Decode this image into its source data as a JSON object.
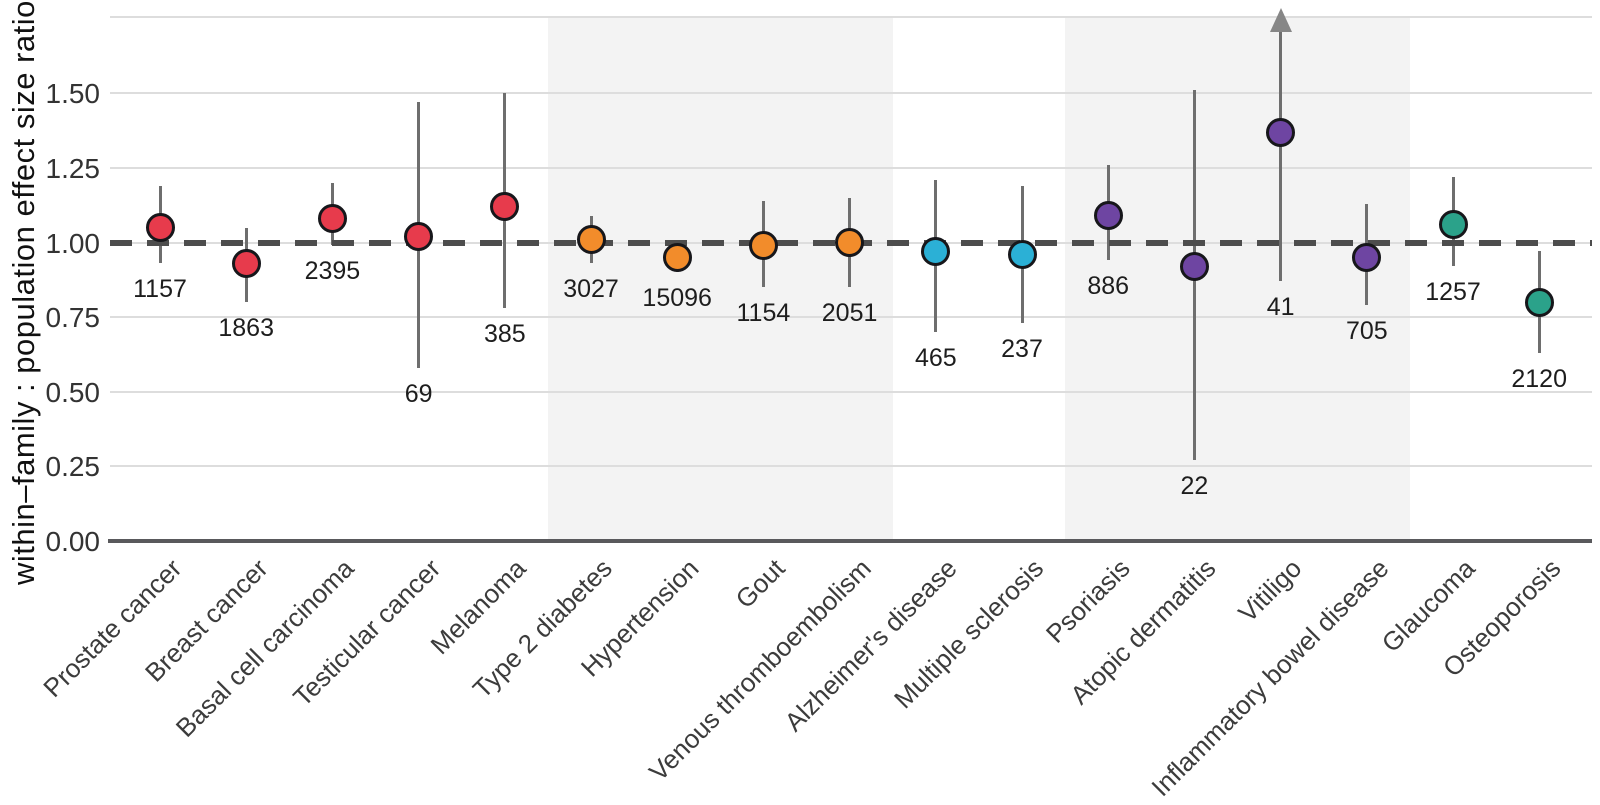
{
  "chart_data": {
    "type": "scatter",
    "title": "",
    "xlabel": "",
    "ylabel": "within–family : population effect size ratio",
    "ylim": [
      0,
      1.76
    ],
    "yticks": [
      0.0,
      0.25,
      0.5,
      0.75,
      1.0,
      1.25,
      1.5
    ],
    "grid": true,
    "legend": "none",
    "reference_line_y": 1.0,
    "reference_line_style": "dashed",
    "shaded_bands_categories": [
      {
        "start": "Type 2 diabetes",
        "end": "Venous thromboembolism"
      },
      {
        "start": "Psoriasis",
        "end": "Inflammatory bowel disease"
      }
    ],
    "point_colors_hex": {
      "red": "#e73b4c",
      "orange": "#f28c2b",
      "cyan": "#2bb0d6",
      "purple": "#6e45a2",
      "teal": "#2ba28a"
    },
    "points": [
      {
        "category": "Prostate cancer",
        "value": 1.05,
        "ci_low": 0.93,
        "ci_high": 1.19,
        "n_label": "1157",
        "color": "#e73b4c",
        "ci_high_truncated": false
      },
      {
        "category": "Breast cancer",
        "value": 0.93,
        "ci_low": 0.8,
        "ci_high": 1.05,
        "n_label": "1863",
        "color": "#e73b4c",
        "ci_high_truncated": false
      },
      {
        "category": "Basal cell carcinoma",
        "value": 1.08,
        "ci_low": 0.99,
        "ci_high": 1.2,
        "n_label": "2395",
        "color": "#e73b4c",
        "ci_high_truncated": false
      },
      {
        "category": "Testicular cancer",
        "value": 1.02,
        "ci_low": 0.58,
        "ci_high": 1.47,
        "n_label": "69",
        "color": "#e73b4c",
        "ci_high_truncated": false
      },
      {
        "category": "Melanoma",
        "value": 1.12,
        "ci_low": 0.78,
        "ci_high": 1.5,
        "n_label": "385",
        "color": "#e73b4c",
        "ci_high_truncated": false
      },
      {
        "category": "Type 2 diabetes",
        "value": 1.01,
        "ci_low": 0.93,
        "ci_high": 1.09,
        "n_label": "3027",
        "color": "#f28c2b",
        "ci_high_truncated": false
      },
      {
        "category": "Hypertension",
        "value": 0.95,
        "ci_low": 0.9,
        "ci_high": 1.01,
        "n_label": "15096",
        "color": "#f28c2b",
        "ci_high_truncated": false
      },
      {
        "category": "Gout",
        "value": 0.99,
        "ci_low": 0.85,
        "ci_high": 1.14,
        "n_label": "1154",
        "color": "#f28c2b",
        "ci_high_truncated": false
      },
      {
        "category": "Venous thromboembolism",
        "value": 1.0,
        "ci_low": 0.85,
        "ci_high": 1.15,
        "n_label": "2051",
        "color": "#f28c2b",
        "ci_high_truncated": false
      },
      {
        "category": "Alzheimer's disease",
        "value": 0.97,
        "ci_low": 0.7,
        "ci_high": 1.21,
        "n_label": "465",
        "color": "#2bb0d6",
        "ci_high_truncated": false
      },
      {
        "category": "Multiple sclerosis",
        "value": 0.96,
        "ci_low": 0.73,
        "ci_high": 1.19,
        "n_label": "237",
        "color": "#2bb0d6",
        "ci_high_truncated": false
      },
      {
        "category": "Psoriasis",
        "value": 1.09,
        "ci_low": 0.94,
        "ci_high": 1.26,
        "n_label": "886",
        "color": "#6e45a2",
        "ci_high_truncated": false
      },
      {
        "category": "Atopic dermatitis",
        "value": 0.92,
        "ci_low": 0.27,
        "ci_high": 1.51,
        "n_label": "22",
        "color": "#6e45a2",
        "ci_high_truncated": false
      },
      {
        "category": "Vitiligo",
        "value": 1.37,
        "ci_low": 0.87,
        "ci_high": null,
        "n_label": "41",
        "color": "#6e45a2",
        "ci_high_truncated": true
      },
      {
        "category": "Inflammatory bowel disease",
        "value": 0.95,
        "ci_low": 0.79,
        "ci_high": 1.13,
        "n_label": "705",
        "color": "#6e45a2",
        "ci_high_truncated": false
      },
      {
        "category": "Glaucoma",
        "value": 1.06,
        "ci_low": 0.92,
        "ci_high": 1.22,
        "n_label": "1257",
        "color": "#2ba28a",
        "ci_high_truncated": false
      },
      {
        "category": "Osteoporosis",
        "value": 0.8,
        "ci_low": 0.63,
        "ci_high": 0.97,
        "n_label": "2120",
        "color": "#2ba28a",
        "ci_high_truncated": false
      }
    ]
  }
}
